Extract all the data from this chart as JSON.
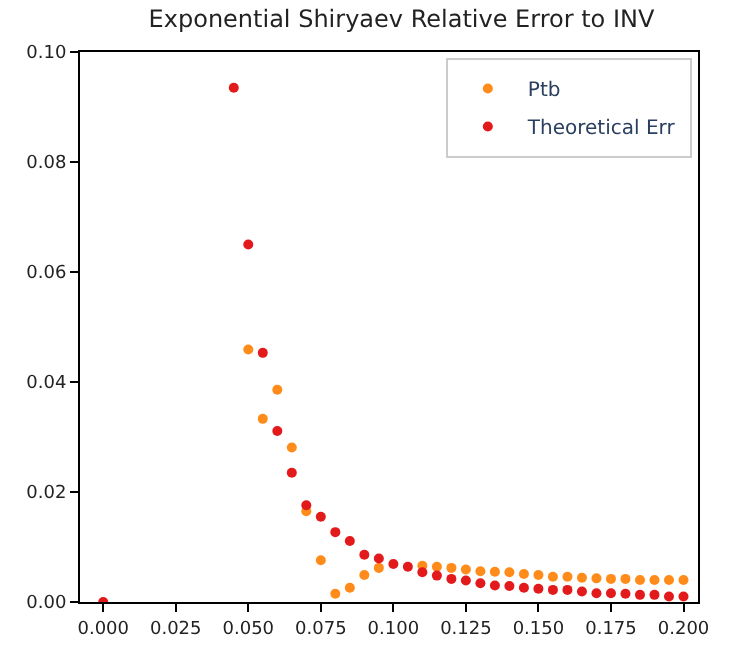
{
  "chart_data": {
    "type": "scatter",
    "title": "Exponential Shiryaev Relative Error to INV",
    "series": [
      {
        "name": "Ptb",
        "color": "#ff8c1a",
        "x": [
          0.05,
          0.055,
          0.06,
          0.065,
          0.07,
          0.075,
          0.08,
          0.085,
          0.09,
          0.095,
          0.1,
          0.105,
          0.11,
          0.115,
          0.12,
          0.125,
          0.13,
          0.135,
          0.14,
          0.145,
          0.15,
          0.155,
          0.16,
          0.165,
          0.17,
          0.175,
          0.18,
          0.185,
          0.19,
          0.195,
          0.2
        ],
        "values": [
          0.0459,
          0.0333,
          0.0386,
          0.0281,
          0.0165,
          0.0076,
          0.0015,
          0.0026,
          0.0049,
          0.0062,
          null,
          null,
          0.0066,
          0.0064,
          0.0062,
          0.0059,
          0.0056,
          0.0055,
          0.0054,
          0.0051,
          0.0049,
          0.0046,
          0.0046,
          0.0044,
          0.0043,
          0.0042,
          0.0042,
          0.004,
          0.004,
          0.004,
          0.004
        ]
      },
      {
        "name": "Theoretical Err",
        "color": "#e31a1c",
        "x": [
          0,
          0.045,
          0.05,
          0.055,
          0.06,
          0.065,
          0.07,
          0.075,
          0.08,
          0.085,
          0.09,
          0.095,
          0.1,
          0.105,
          0.11,
          0.115,
          0.12,
          0.125,
          0.13,
          0.135,
          0.14,
          0.145,
          0.15,
          0.155,
          0.16,
          0.165,
          0.17,
          0.175,
          0.18,
          0.185,
          0.19,
          0.195,
          0.2
        ],
        "values": [
          0.0,
          0.0935,
          0.065,
          0.0453,
          0.0311,
          0.0235,
          0.0176,
          0.0155,
          0.0127,
          0.0111,
          0.0086,
          0.0079,
          0.0069,
          0.0064,
          0.0054,
          0.0048,
          0.0042,
          0.0039,
          0.0034,
          0.003,
          0.0029,
          0.0026,
          0.0024,
          0.0022,
          0.0022,
          0.0019,
          0.0016,
          0.0016,
          0.0015,
          0.0013,
          0.0013,
          0.001,
          0.001
        ]
      }
    ],
    "marker": "circle",
    "legend": "top right",
    "xlim": [
      -0.008,
      0.205
    ],
    "ylim": [
      0,
      0.1
    ],
    "xticks": [
      {
        "value": 0,
        "label": "0.000"
      },
      {
        "value": 0.025,
        "label": "0.025"
      },
      {
        "value": 0.05,
        "label": "0.050"
      },
      {
        "value": 0.075,
        "label": "0.075"
      },
      {
        "value": 0.1,
        "label": "0.100"
      },
      {
        "value": 0.125,
        "label": "0.125"
      },
      {
        "value": 0.15,
        "label": "0.150"
      },
      {
        "value": 0.175,
        "label": "0.175"
      },
      {
        "value": 0.2,
        "label": "0.200"
      }
    ],
    "yticks": [
      {
        "value": 0,
        "label": "0.00"
      },
      {
        "value": 0.02,
        "label": "0.02"
      },
      {
        "value": 0.04,
        "label": "0.04"
      },
      {
        "value": 0.06,
        "label": "0.06"
      },
      {
        "value": 0.08,
        "label": "0.08"
      },
      {
        "value": 0.1,
        "label": "0.10"
      }
    ]
  }
}
